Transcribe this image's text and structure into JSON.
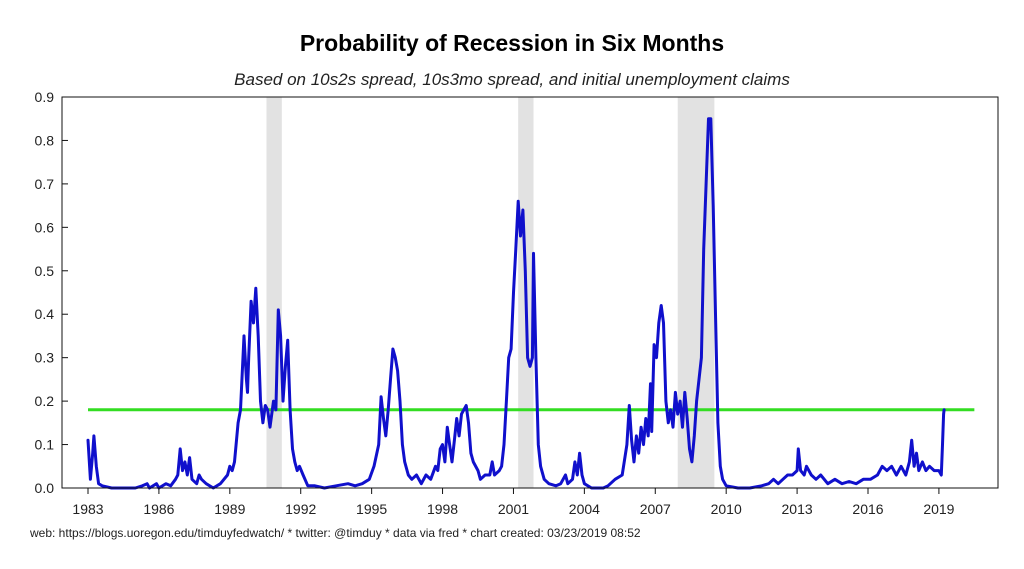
{
  "chart_data": {
    "type": "line",
    "title": "Probability of Recession in Six Months",
    "subtitle": "Based on 10s2s spread, 10s3mo spread, and initial unemployment claims",
    "xlabel": "",
    "ylabel": "",
    "xlim": [
      1981.9,
      2021.5
    ],
    "ylim": [
      0,
      0.9
    ],
    "x_ticks": [
      1983,
      1986,
      1989,
      1992,
      1995,
      1998,
      2001,
      2004,
      2007,
      2010,
      2013,
      2016,
      2019
    ],
    "x_tick_labels": [
      "1983",
      "1986",
      "1989",
      "1992",
      "1995",
      "1998",
      "2001",
      "2004",
      "2007",
      "2010",
      "2013",
      "2016",
      "2019"
    ],
    "y_ticks": [
      0,
      0.1,
      0.2,
      0.3,
      0.4,
      0.5,
      0.6,
      0.7,
      0.8,
      0.9
    ],
    "y_tick_labels": [
      "0.0",
      "0.1",
      "0.2",
      "0.3",
      "0.4",
      "0.5",
      "0.6",
      "0.7",
      "0.8",
      "0.9"
    ],
    "grid": false,
    "recession_bands": [
      {
        "start": 1990.55,
        "end": 1991.2
      },
      {
        "start": 2001.2,
        "end": 2001.85
      },
      {
        "start": 2007.95,
        "end": 2009.5
      }
    ],
    "threshold_line": {
      "value": 0.18,
      "x_start": 1983,
      "x_end": 2020.5,
      "color": "#33dd22"
    },
    "series": [
      {
        "name": "",
        "color": "#1010cc",
        "points": [
          [
            1983.0,
            0.11
          ],
          [
            1983.1,
            0.02
          ],
          [
            1983.2,
            0.08
          ],
          [
            1983.25,
            0.12
          ],
          [
            1983.35,
            0.05
          ],
          [
            1983.45,
            0.01
          ],
          [
            1983.6,
            0.005
          ],
          [
            1984.0,
            0.0
          ],
          [
            1984.5,
            0.0
          ],
          [
            1985.0,
            0.0
          ],
          [
            1985.3,
            0.005
          ],
          [
            1985.5,
            0.01
          ],
          [
            1985.6,
            0.0
          ],
          [
            1985.9,
            0.01
          ],
          [
            1986.0,
            0.0
          ],
          [
            1986.3,
            0.01
          ],
          [
            1986.5,
            0.005
          ],
          [
            1986.7,
            0.02
          ],
          [
            1986.8,
            0.03
          ],
          [
            1986.9,
            0.09
          ],
          [
            1987.0,
            0.04
          ],
          [
            1987.1,
            0.06
          ],
          [
            1987.2,
            0.03
          ],
          [
            1987.3,
            0.07
          ],
          [
            1987.4,
            0.02
          ],
          [
            1987.6,
            0.01
          ],
          [
            1987.7,
            0.03
          ],
          [
            1987.8,
            0.02
          ],
          [
            1988.0,
            0.01
          ],
          [
            1988.3,
            0.0
          ],
          [
            1988.6,
            0.01
          ],
          [
            1988.9,
            0.03
          ],
          [
            1989.0,
            0.05
          ],
          [
            1989.1,
            0.04
          ],
          [
            1989.2,
            0.06
          ],
          [
            1989.35,
            0.15
          ],
          [
            1989.45,
            0.18
          ],
          [
            1989.6,
            0.35
          ],
          [
            1989.7,
            0.25
          ],
          [
            1989.75,
            0.22
          ],
          [
            1989.8,
            0.3
          ],
          [
            1989.9,
            0.43
          ],
          [
            1990.0,
            0.38
          ],
          [
            1990.1,
            0.46
          ],
          [
            1990.2,
            0.35
          ],
          [
            1990.3,
            0.2
          ],
          [
            1990.4,
            0.15
          ],
          [
            1990.5,
            0.19
          ],
          [
            1990.6,
            0.18
          ],
          [
            1990.7,
            0.14
          ],
          [
            1990.85,
            0.2
          ],
          [
            1990.95,
            0.18
          ],
          [
            1991.05,
            0.41
          ],
          [
            1991.15,
            0.35
          ],
          [
            1991.25,
            0.2
          ],
          [
            1991.35,
            0.28
          ],
          [
            1991.45,
            0.34
          ],
          [
            1991.55,
            0.18
          ],
          [
            1991.65,
            0.09
          ],
          [
            1991.75,
            0.06
          ],
          [
            1991.85,
            0.04
          ],
          [
            1991.95,
            0.05
          ],
          [
            1992.1,
            0.03
          ],
          [
            1992.3,
            0.005
          ],
          [
            1992.6,
            0.005
          ],
          [
            1993.0,
            0.0
          ],
          [
            1993.5,
            0.005
          ],
          [
            1994.0,
            0.01
          ],
          [
            1994.3,
            0.005
          ],
          [
            1994.6,
            0.01
          ],
          [
            1994.9,
            0.02
          ],
          [
            1995.1,
            0.05
          ],
          [
            1995.3,
            0.1
          ],
          [
            1995.4,
            0.21
          ],
          [
            1995.5,
            0.16
          ],
          [
            1995.6,
            0.12
          ],
          [
            1995.7,
            0.18
          ],
          [
            1995.8,
            0.25
          ],
          [
            1995.9,
            0.32
          ],
          [
            1996.0,
            0.3
          ],
          [
            1996.1,
            0.27
          ],
          [
            1996.2,
            0.2
          ],
          [
            1996.3,
            0.1
          ],
          [
            1996.4,
            0.06
          ],
          [
            1996.55,
            0.03
          ],
          [
            1996.7,
            0.02
          ],
          [
            1996.9,
            0.03
          ],
          [
            1997.1,
            0.01
          ],
          [
            1997.3,
            0.03
          ],
          [
            1997.5,
            0.02
          ],
          [
            1997.7,
            0.05
          ],
          [
            1997.8,
            0.04
          ],
          [
            1997.9,
            0.09
          ],
          [
            1998.0,
            0.1
          ],
          [
            1998.1,
            0.06
          ],
          [
            1998.2,
            0.14
          ],
          [
            1998.3,
            0.1
          ],
          [
            1998.4,
            0.06
          ],
          [
            1998.5,
            0.11
          ],
          [
            1998.6,
            0.16
          ],
          [
            1998.7,
            0.12
          ],
          [
            1998.8,
            0.17
          ],
          [
            1998.9,
            0.18
          ],
          [
            1999.0,
            0.19
          ],
          [
            1999.1,
            0.15
          ],
          [
            1999.2,
            0.08
          ],
          [
            1999.3,
            0.06
          ],
          [
            1999.5,
            0.04
          ],
          [
            1999.6,
            0.02
          ],
          [
            1999.8,
            0.03
          ],
          [
            2000.0,
            0.03
          ],
          [
            2000.1,
            0.06
          ],
          [
            2000.2,
            0.03
          ],
          [
            2000.4,
            0.04
          ],
          [
            2000.5,
            0.05
          ],
          [
            2000.6,
            0.1
          ],
          [
            2000.7,
            0.2
          ],
          [
            2000.8,
            0.3
          ],
          [
            2000.9,
            0.32
          ],
          [
            2001.0,
            0.45
          ],
          [
            2001.1,
            0.55
          ],
          [
            2001.2,
            0.66
          ],
          [
            2001.3,
            0.58
          ],
          [
            2001.4,
            0.64
          ],
          [
            2001.5,
            0.5
          ],
          [
            2001.6,
            0.3
          ],
          [
            2001.7,
            0.28
          ],
          [
            2001.8,
            0.3
          ],
          [
            2001.85,
            0.54
          ],
          [
            2001.95,
            0.3
          ],
          [
            2002.05,
            0.1
          ],
          [
            2002.15,
            0.05
          ],
          [
            2002.3,
            0.02
          ],
          [
            2002.5,
            0.01
          ],
          [
            2002.8,
            0.005
          ],
          [
            2003.0,
            0.01
          ],
          [
            2003.2,
            0.03
          ],
          [
            2003.3,
            0.01
          ],
          [
            2003.5,
            0.02
          ],
          [
            2003.6,
            0.06
          ],
          [
            2003.7,
            0.03
          ],
          [
            2003.8,
            0.08
          ],
          [
            2003.9,
            0.03
          ],
          [
            2004.0,
            0.01
          ],
          [
            2004.3,
            0.0
          ],
          [
            2004.8,
            0.0
          ],
          [
            2005.0,
            0.005
          ],
          [
            2005.3,
            0.02
          ],
          [
            2005.6,
            0.03
          ],
          [
            2005.8,
            0.1
          ],
          [
            2005.9,
            0.19
          ],
          [
            2006.0,
            0.11
          ],
          [
            2006.1,
            0.06
          ],
          [
            2006.2,
            0.12
          ],
          [
            2006.3,
            0.08
          ],
          [
            2006.4,
            0.14
          ],
          [
            2006.5,
            0.1
          ],
          [
            2006.6,
            0.16
          ],
          [
            2006.7,
            0.12
          ],
          [
            2006.8,
            0.24
          ],
          [
            2006.85,
            0.13
          ],
          [
            2006.95,
            0.33
          ],
          [
            2007.05,
            0.3
          ],
          [
            2007.15,
            0.38
          ],
          [
            2007.25,
            0.42
          ],
          [
            2007.35,
            0.38
          ],
          [
            2007.45,
            0.2
          ],
          [
            2007.55,
            0.15
          ],
          [
            2007.65,
            0.18
          ],
          [
            2007.75,
            0.14
          ],
          [
            2007.85,
            0.22
          ],
          [
            2007.95,
            0.17
          ],
          [
            2008.05,
            0.2
          ],
          [
            2008.15,
            0.14
          ],
          [
            2008.25,
            0.22
          ],
          [
            2008.35,
            0.16
          ],
          [
            2008.45,
            0.09
          ],
          [
            2008.55,
            0.06
          ],
          [
            2008.65,
            0.12
          ],
          [
            2008.75,
            0.2
          ],
          [
            2008.85,
            0.25
          ],
          [
            2008.95,
            0.3
          ],
          [
            2009.05,
            0.55
          ],
          [
            2009.15,
            0.7
          ],
          [
            2009.25,
            0.85
          ],
          [
            2009.35,
            0.85
          ],
          [
            2009.45,
            0.65
          ],
          [
            2009.55,
            0.4
          ],
          [
            2009.65,
            0.15
          ],
          [
            2009.75,
            0.05
          ],
          [
            2009.85,
            0.02
          ],
          [
            2010.0,
            0.005
          ],
          [
            2010.5,
            0.0
          ],
          [
            2011.0,
            0.0
          ],
          [
            2011.5,
            0.005
          ],
          [
            2011.8,
            0.01
          ],
          [
            2012.0,
            0.02
          ],
          [
            2012.2,
            0.01
          ],
          [
            2012.4,
            0.02
          ],
          [
            2012.6,
            0.03
          ],
          [
            2012.8,
            0.03
          ],
          [
            2013.0,
            0.04
          ],
          [
            2013.05,
            0.09
          ],
          [
            2013.15,
            0.04
          ],
          [
            2013.3,
            0.03
          ],
          [
            2013.4,
            0.05
          ],
          [
            2013.6,
            0.03
          ],
          [
            2013.8,
            0.02
          ],
          [
            2014.0,
            0.03
          ],
          [
            2014.3,
            0.01
          ],
          [
            2014.6,
            0.02
          ],
          [
            2014.9,
            0.01
          ],
          [
            2015.2,
            0.015
          ],
          [
            2015.5,
            0.01
          ],
          [
            2015.8,
            0.02
          ],
          [
            2016.1,
            0.02
          ],
          [
            2016.4,
            0.03
          ],
          [
            2016.6,
            0.05
          ],
          [
            2016.8,
            0.04
          ],
          [
            2017.0,
            0.05
          ],
          [
            2017.2,
            0.03
          ],
          [
            2017.4,
            0.05
          ],
          [
            2017.6,
            0.03
          ],
          [
            2017.75,
            0.06
          ],
          [
            2017.85,
            0.11
          ],
          [
            2017.95,
            0.05
          ],
          [
            2018.05,
            0.08
          ],
          [
            2018.15,
            0.04
          ],
          [
            2018.3,
            0.06
          ],
          [
            2018.45,
            0.04
          ],
          [
            2018.6,
            0.05
          ],
          [
            2018.8,
            0.04
          ],
          [
            2019.0,
            0.04
          ],
          [
            2019.1,
            0.03
          ],
          [
            2019.15,
            0.1
          ],
          [
            2019.2,
            0.17
          ],
          [
            2019.22,
            0.18
          ]
        ]
      }
    ]
  },
  "footer": "web: https://blogs.uoregon.edu/timduyfedwatch/ * twitter: @timduy * data via fred * chart created: 03/23/2019 08:52"
}
